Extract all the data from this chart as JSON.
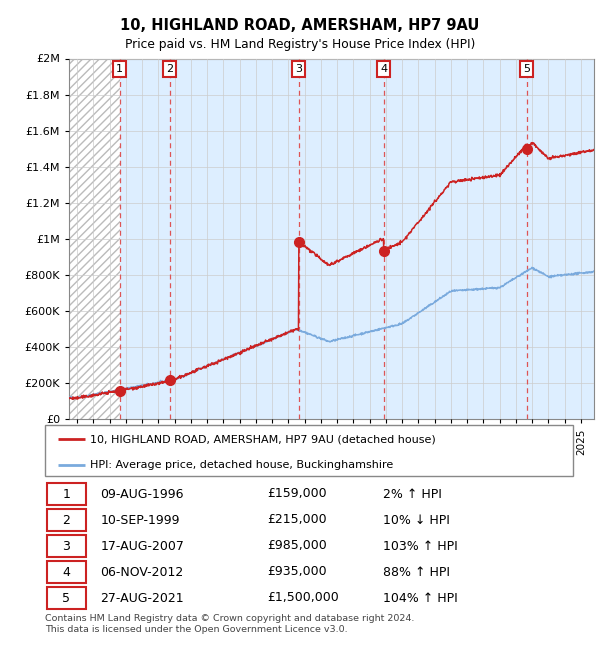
{
  "title": "10, HIGHLAND ROAD, AMERSHAM, HP7 9AU",
  "subtitle": "Price paid vs. HM Land Registry's House Price Index (HPI)",
  "footer": "Contains HM Land Registry data © Crown copyright and database right 2024.\nThis data is licensed under the Open Government Licence v3.0.",
  "legend_line1": "10, HIGHLAND ROAD, AMERSHAM, HP7 9AU (detached house)",
  "legend_line2": "HPI: Average price, detached house, Buckinghamshire",
  "transactions": [
    {
      "num": 1,
      "date": "09-AUG-1996",
      "year": 1996.61,
      "price": 159000,
      "pct": "2%",
      "dir": "↑"
    },
    {
      "num": 2,
      "date": "10-SEP-1999",
      "year": 1999.7,
      "price": 215000,
      "pct": "10%",
      "dir": "↓"
    },
    {
      "num": 3,
      "date": "17-AUG-2007",
      "year": 2007.62,
      "price": 985000,
      "pct": "103%",
      "dir": "↑"
    },
    {
      "num": 4,
      "date": "06-NOV-2012",
      "year": 2012.85,
      "price": 935000,
      "pct": "88%",
      "dir": "↑"
    },
    {
      "num": 5,
      "date": "27-AUG-2021",
      "year": 2021.65,
      "price": 1500000,
      "pct": "104%",
      "dir": "↑"
    }
  ],
  "hpi_color": "#7aaadd",
  "price_color": "#cc2222",
  "marker_color": "#cc2222",
  "vline_color": "#dd5555",
  "shade_color": "#ddeeff",
  "hatch_color": "#bbbbbb",
  "grid_color": "#cccccc",
  "ylim": [
    0,
    2000000
  ],
  "xlim_start": 1993.5,
  "xlim_end": 2025.8,
  "yticks": [
    0,
    200000,
    400000,
    600000,
    800000,
    1000000,
    1200000,
    1400000,
    1600000,
    1800000,
    2000000
  ],
  "xtick_start": 1994,
  "xtick_end": 2025
}
